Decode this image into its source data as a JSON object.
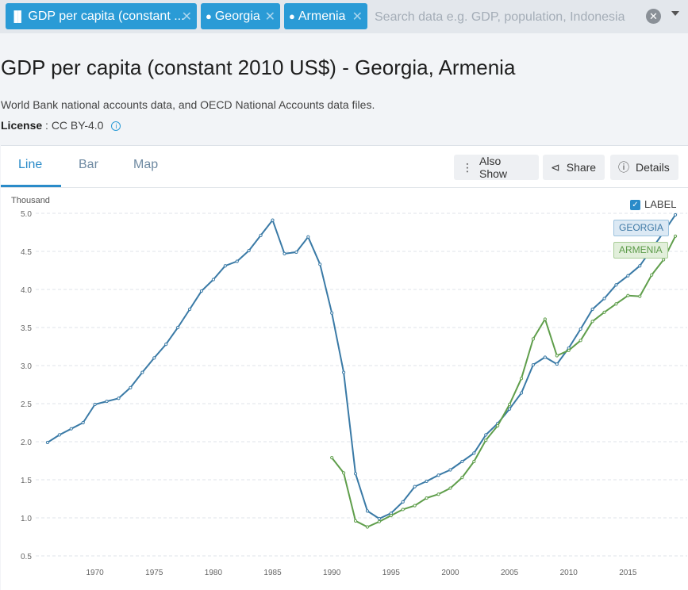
{
  "search": {
    "chips": [
      {
        "icon": "bar-chart-icon",
        "label": "GDP per capita (constant ..."
      },
      {
        "icon": "location-pin-icon",
        "label": "Georgia"
      },
      {
        "icon": "location-pin-icon",
        "label": "Armenia"
      }
    ],
    "placeholder": "Search data e.g. GDP, population, Indonesia",
    "clear_glyph": "✕",
    "remove_glyph": "✕"
  },
  "page": {
    "title": "GDP per capita (constant 2010 US$) - Georgia, Armenia",
    "source": "World Bank national accounts data, and OECD National Accounts data files.",
    "license_label": "License",
    "license_value": "CC BY-4.0"
  },
  "tabs": [
    "Line",
    "Bar",
    "Map"
  ],
  "toolbar": {
    "also_show": "Also Show",
    "share": "Share",
    "details": "Details"
  },
  "legend": {
    "label": "LABEL",
    "checked": true
  },
  "colors": {
    "accent": "#2a8bc9",
    "georgia": "#3a7aa6",
    "armenia": "#5f9e4b",
    "grid": "#dfe3e8"
  },
  "chart_data": {
    "type": "line",
    "unit_label": "Thousand",
    "x_ticks": [
      1970,
      1975,
      1980,
      1985,
      1990,
      1995,
      2000,
      2005,
      2010,
      2015
    ],
    "y_ticks": [
      "5.0",
      "4.5",
      "4.0",
      "3.5",
      "3.0",
      "2.5",
      "2.0",
      "1.5",
      "1.0",
      "0.5"
    ],
    "xlim": [
      1965,
      2020
    ],
    "ylim": [
      0.5,
      5.0
    ],
    "series": [
      {
        "name": "GEORGIA",
        "x": [
          1966,
          1967,
          1968,
          1969,
          1970,
          1971,
          1972,
          1973,
          1974,
          1975,
          1976,
          1977,
          1978,
          1979,
          1980,
          1981,
          1982,
          1983,
          1984,
          1985,
          1986,
          1987,
          1988,
          1989,
          1990,
          1991,
          1992,
          1993,
          1994,
          1995,
          1996,
          1997,
          1998,
          1999,
          2000,
          2001,
          2002,
          2003,
          2004,
          2005,
          2006,
          2007,
          2008,
          2009,
          2010,
          2011,
          2012,
          2013,
          2014,
          2015,
          2016,
          2017,
          2018,
          2019
        ],
        "values": [
          1.99,
          2.09,
          2.17,
          2.25,
          2.49,
          2.53,
          2.57,
          2.71,
          2.91,
          3.1,
          3.28,
          3.5,
          3.74,
          3.98,
          4.13,
          4.31,
          4.37,
          4.51,
          4.71,
          4.91,
          4.47,
          4.49,
          4.69,
          4.33,
          3.69,
          2.91,
          1.58,
          1.09,
          0.99,
          1.06,
          1.21,
          1.41,
          1.48,
          1.56,
          1.63,
          1.74,
          1.85,
          2.09,
          2.24,
          2.43,
          2.64,
          3.01,
          3.11,
          3.02,
          3.23,
          3.48,
          3.74,
          3.88,
          4.06,
          4.18,
          4.31,
          4.53,
          4.75,
          4.98
        ]
      },
      {
        "name": "ARMENIA",
        "x": [
          1990,
          1991,
          1992,
          1993,
          1994,
          1995,
          1996,
          1997,
          1998,
          1999,
          2000,
          2001,
          2002,
          2003,
          2004,
          2005,
          2006,
          2007,
          2008,
          2009,
          2010,
          2011,
          2012,
          2013,
          2014,
          2015,
          2016,
          2017,
          2018,
          2019
        ],
        "values": [
          1.79,
          1.59,
          0.96,
          0.88,
          0.95,
          1.03,
          1.11,
          1.16,
          1.26,
          1.31,
          1.39,
          1.53,
          1.74,
          2.02,
          2.21,
          2.49,
          2.83,
          3.35,
          3.61,
          3.13,
          3.2,
          3.33,
          3.58,
          3.7,
          3.81,
          3.92,
          3.91,
          4.19,
          4.39,
          4.7
        ]
      }
    ]
  }
}
